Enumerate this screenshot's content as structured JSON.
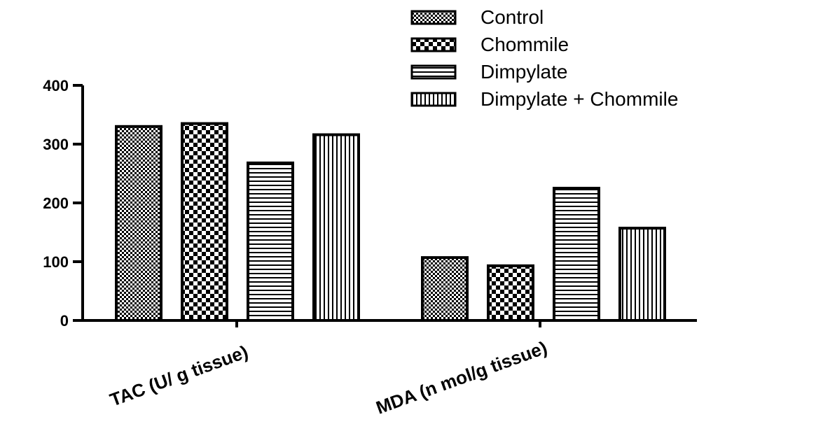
{
  "chart_data": {
    "type": "bar",
    "categories": [
      "TAC (U/ g tissue)",
      "MDA (n mol/g tissue)"
    ],
    "series": [
      {
        "name": "Control",
        "values": [
          330,
          107
        ],
        "pattern": "fine-checker"
      },
      {
        "name": "Chommile",
        "values": [
          335,
          93
        ],
        "pattern": "checker"
      },
      {
        "name": "Dimpylate",
        "values": [
          268,
          225
        ],
        "pattern": "horizontal-lines"
      },
      {
        "name": "Dimpylate + Chommile",
        "values": [
          316,
          157
        ],
        "pattern": "vertical-lines"
      }
    ],
    "ylim": [
      0,
      400
    ],
    "yticks": [
      0,
      100,
      200,
      300,
      400
    ],
    "xlabel": "",
    "ylabel": "",
    "title": "",
    "legend_position": "top-right",
    "grid": false,
    "colors": {
      "bar_stroke": "#000000",
      "pattern_ink": "#000000",
      "background": "#ffffff"
    }
  }
}
